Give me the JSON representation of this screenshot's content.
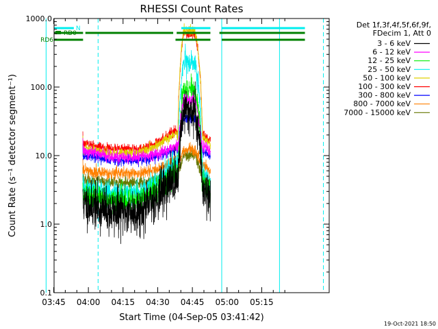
{
  "chart_data": {
    "type": "line",
    "title": "RHESSI Count Rates",
    "xlabel": "Start Time (04-Sep-05 03:41:42)",
    "ylabel": "Count Rate (s⁻¹ detector segment⁻¹)",
    "y_scale": "log",
    "ylim": [
      0.1,
      1000
    ],
    "xlim_minutes": [
      3.45,
      122.5
    ],
    "x_ticks": [
      {
        "label": "03:45",
        "minute": 225
      },
      {
        "label": "04:00",
        "minute": 240
      },
      {
        "label": "04:15",
        "minute": 255
      },
      {
        "label": "04:30",
        "minute": 270
      },
      {
        "label": "04:45",
        "minute": 285
      },
      {
        "label": "05:00",
        "minute": 300
      },
      {
        "label": "05:15",
        "minute": 315
      }
    ],
    "y_ticks": [
      {
        "label": "0.1",
        "value": 0.1
      },
      {
        "label": "1.0",
        "value": 1
      },
      {
        "label": "10.0",
        "value": 10
      },
      {
        "label": "100.0",
        "value": 100
      },
      {
        "label": "1000.0",
        "value": 1000
      }
    ],
    "legend_header": [
      "Det 1f,3f,4f,5f,6f,9f,",
      "FDecim 1, Att 0"
    ],
    "series": [
      {
        "name": "3 - 6 keV",
        "color": "#000000",
        "pre": 2.0,
        "min": 1.5,
        "rise": 4.5,
        "peak": 45,
        "post": 2.2,
        "noise": 0.38,
        "seed": 11
      },
      {
        "name": "6 - 12 keV",
        "color": "#ff00ff",
        "pre": 12,
        "min": 9.5,
        "rise": 13,
        "peak": 65,
        "post": 13,
        "noise": 0.1,
        "seed": 12
      },
      {
        "name": "12 - 25 keV",
        "color": "#00ee00",
        "pre": 2.7,
        "min": 2.2,
        "rise": 5.2,
        "peak": 90,
        "post": 2.5,
        "noise": 0.22,
        "seed": 13
      },
      {
        "name": "25 - 50 keV",
        "color": "#00eeee",
        "pre": 3.6,
        "min": 2.9,
        "rise": 7.5,
        "peak": 230,
        "post": 3.4,
        "noise": 0.18,
        "seed": 14
      },
      {
        "name": "50 - 100 keV",
        "color": "#e0d000",
        "pre": 13,
        "min": 11,
        "rise": 20,
        "peak": 660,
        "post": 15,
        "noise": 0.08,
        "seed": 15
      },
      {
        "name": "100 - 300 keV",
        "color": "#ff0000",
        "pre": 15,
        "min": 12.5,
        "rise": 22,
        "peak": 600,
        "post": 17,
        "noise": 0.08,
        "seed": 16
      },
      {
        "name": "300 - 800 keV",
        "color": "#0000ff",
        "pre": 10,
        "min": 8.5,
        "rise": 12,
        "peak": 35,
        "post": 10.5,
        "noise": 0.08,
        "seed": 17
      },
      {
        "name": "800 - 7000 keV",
        "color": "#ff8000",
        "pre": 6,
        "min": 5.5,
        "rise": 8,
        "peak": 12,
        "post": 6,
        "noise": 0.1,
        "seed": 18
      },
      {
        "name": "7000 - 15000 keV",
        "color": "#667700",
        "pre": 4.5,
        "min": 4,
        "rise": 5.5,
        "peak": 10,
        "post": 4.5,
        "noise": 0.1,
        "seed": 19
      }
    ],
    "data_window_minutes": [
      15.9,
      71.1
    ],
    "peak_minute": 63.0,
    "flag_bars": [
      {
        "label": "N",
        "color": "#00eeee",
        "segments": [
          [
            0,
            12
          ],
          [
            58.5,
            71.1
          ],
          [
            76,
            112
          ]
        ],
        "level": 1
      },
      {
        "label": "RD0",
        "color": "#008000",
        "segments": [
          [
            0,
            16
          ],
          [
            17,
            55
          ],
          [
            56.5,
            71.1
          ],
          [
            75,
            112
          ]
        ],
        "level": 2
      },
      {
        "label": "RD6",
        "color": "#008000",
        "segments": [
          [
            0,
            16
          ],
          [
            56,
            71.1
          ],
          [
            76,
            112
          ]
        ],
        "level": 3
      }
    ],
    "night_boundaries_minutes": [
      0,
      22.5,
      101
    ],
    "timestamp": "19-Oct-2021 18:50"
  }
}
